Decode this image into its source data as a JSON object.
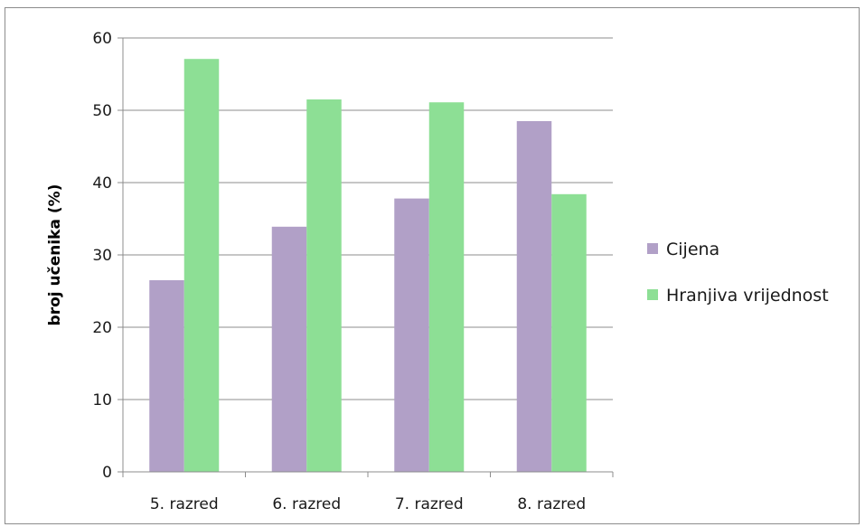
{
  "chart_data": {
    "type": "bar",
    "categories": [
      "5. razred",
      "6. razred",
      "7. razred",
      "8. razred"
    ],
    "series": [
      {
        "name": "Cijena",
        "values": [
          26.5,
          33.9,
          37.8,
          48.5
        ],
        "color": "#b1a0c7"
      },
      {
        "name": "Hranjiva vrijednost",
        "values": [
          57.1,
          51.5,
          51.1,
          38.4
        ],
        "color": "#8ddf95"
      }
    ],
    "title": "",
    "xlabel": "",
    "ylabel": "broj učenika (%)",
    "ylim": [
      0,
      60
    ],
    "yticks": [
      0,
      10,
      20,
      30,
      40,
      50,
      60
    ],
    "grid": true,
    "legend_position": "right"
  }
}
